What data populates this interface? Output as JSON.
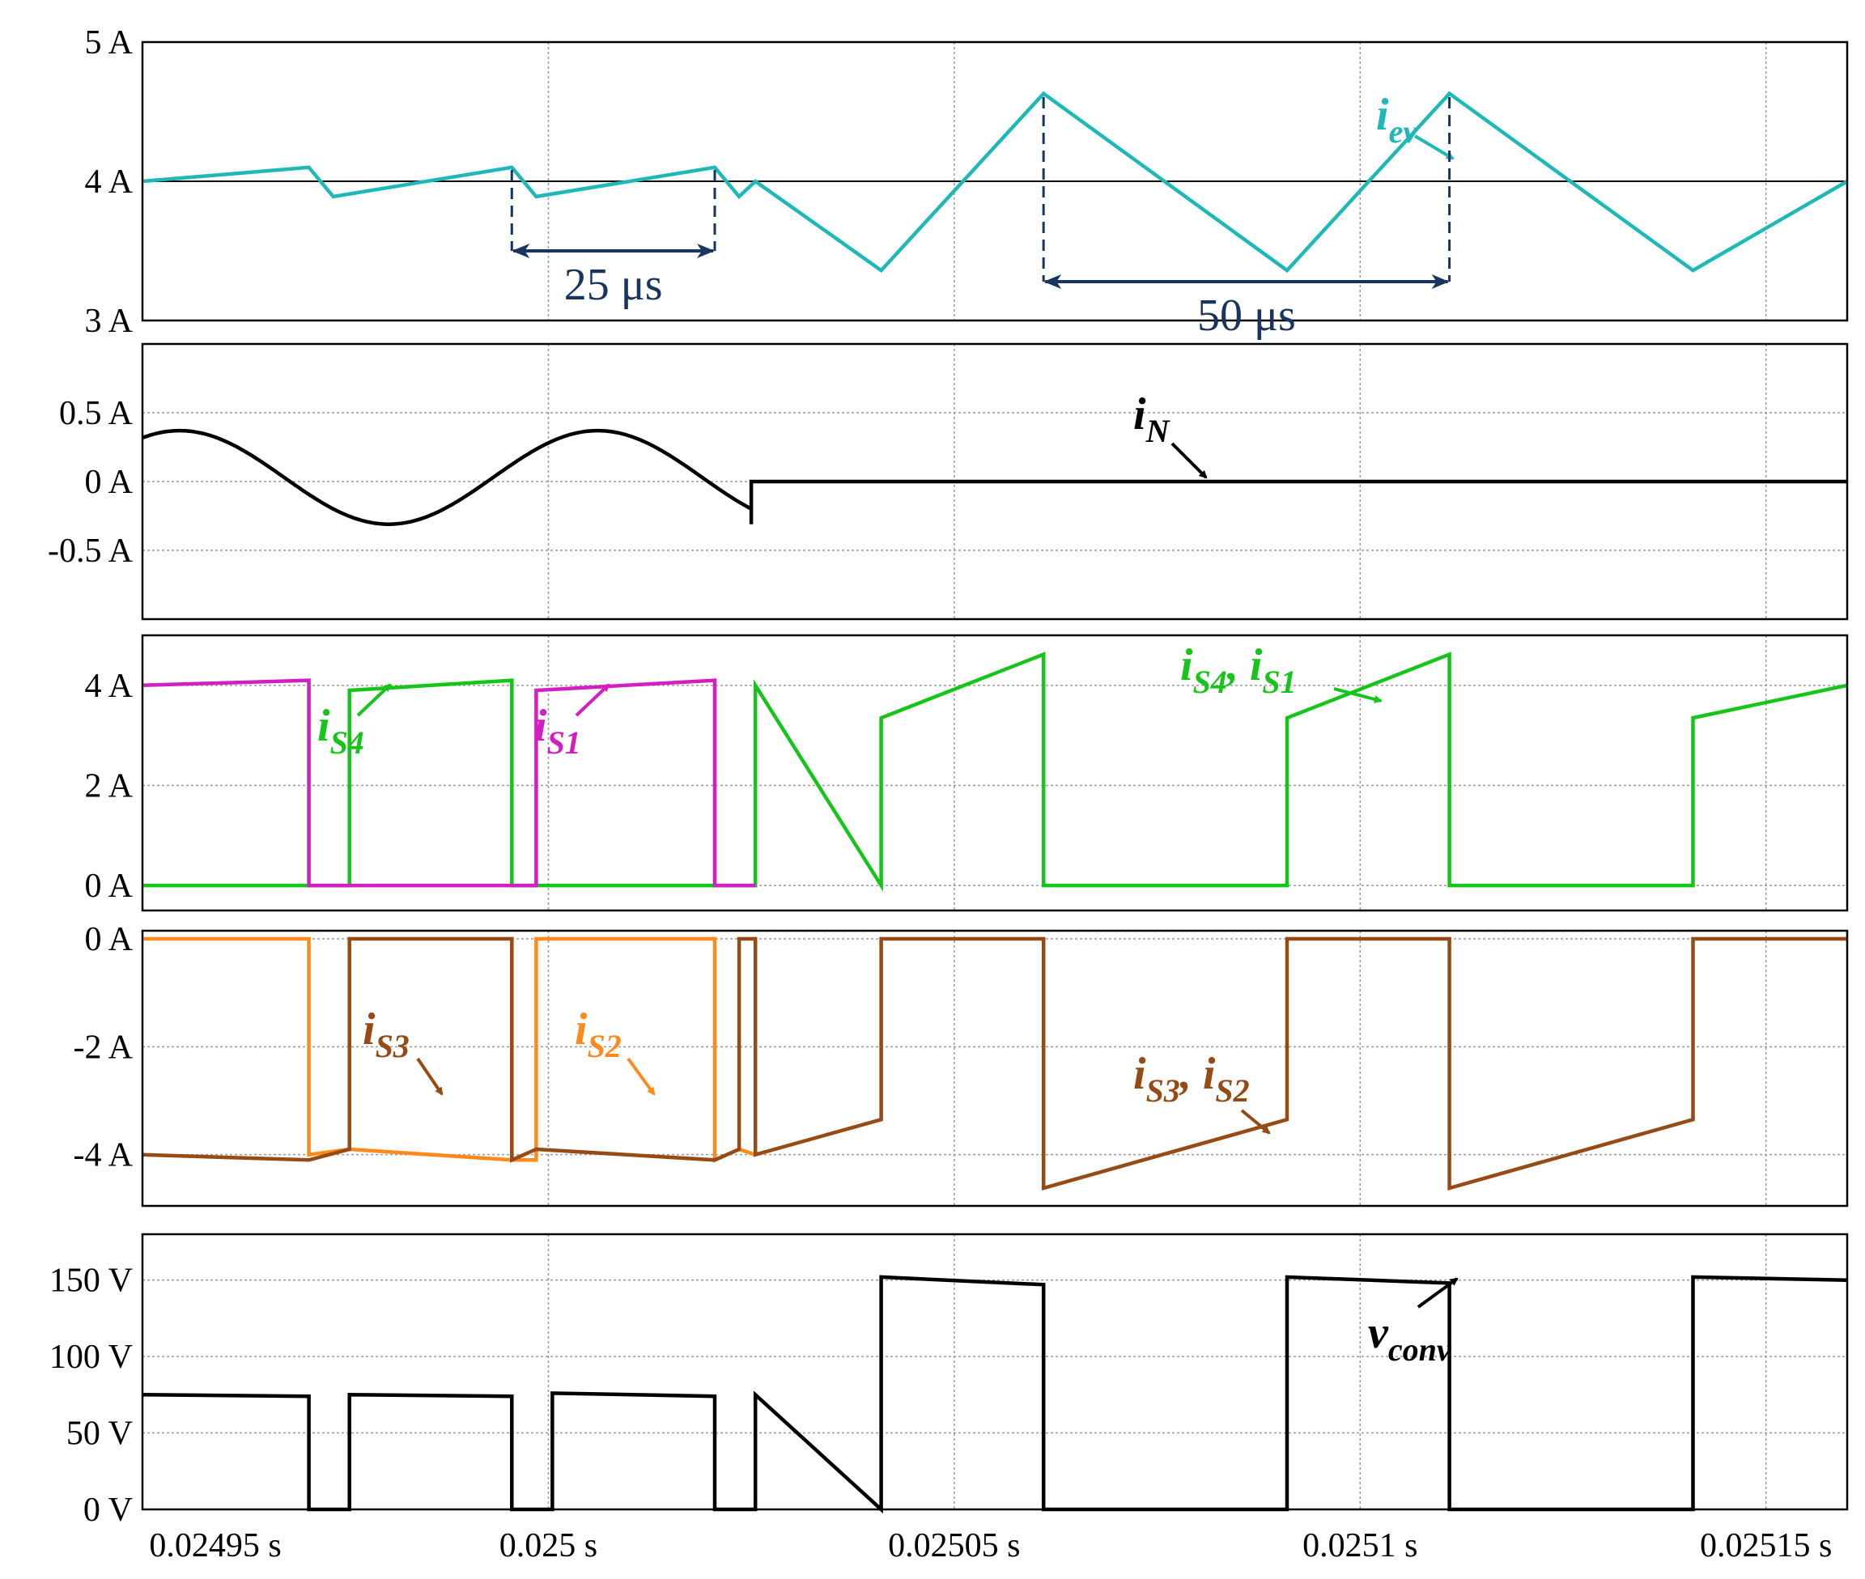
{
  "chart_data": [
    {
      "type": "line",
      "panel": "i_ev",
      "x_unit": "s",
      "ylim": [
        3,
        5
      ],
      "ytick_values": [
        3,
        4,
        5
      ],
      "yticks": [
        "3 A",
        "4 A",
        "5 A"
      ],
      "grid": true,
      "reference_line": 4,
      "series": [
        {
          "name": "iev",
          "color": "#1fb8b8",
          "x": [
            0.02495,
            0.0249705,
            0.0249735,
            0.0249955,
            0.0249985,
            0.0250205,
            0.0250235,
            0.0250255,
            0.025041,
            0.025061,
            0.025091,
            0.025111,
            0.025141,
            0.02516
          ],
          "y": [
            4.0,
            4.1,
            3.89,
            4.1,
            3.89,
            4.1,
            3.89,
            4.0,
            3.36,
            4.63,
            3.36,
            4.63,
            3.36,
            4.0
          ]
        }
      ],
      "labels": [
        {
          "base": "i",
          "sub": "ev"
        }
      ],
      "annotations": [
        {
          "text": "25 μs",
          "from": 0.0249955,
          "to": 0.0250205
        },
        {
          "text": "50 μs",
          "from": 0.025061,
          "to": 0.025111
        }
      ]
    },
    {
      "type": "line",
      "panel": "i_N",
      "x_unit": "s",
      "ylim": [
        -1,
        1
      ],
      "ytick_values": [
        0.5,
        0,
        -0.5
      ],
      "yticks": [
        "0.5 A",
        "0 A",
        "-0.5 A"
      ],
      "grid": true,
      "series": [
        {
          "name": "iN",
          "color": "#000000",
          "sine": {
            "start": 0.02495,
            "end": 0.025025,
            "offset": 0.03,
            "amplitude": 0.34,
            "period": 5.15e-05,
            "phase_deg": 58
          },
          "x": [
            0.025025,
            0.025025,
            0.02516
          ],
          "y": [
            -0.31,
            0.0,
            0.0
          ]
        }
      ],
      "labels": [
        {
          "base": "i",
          "sub": "N"
        }
      ]
    },
    {
      "type": "line",
      "panel": "i_S4_i_S1",
      "x_unit": "s",
      "ylim": [
        -0.5,
        5.0
      ],
      "ytick_values": [
        4,
        2,
        0
      ],
      "yticks": [
        "4 A",
        "2 A",
        "0 A"
      ],
      "grid": true,
      "series": [
        {
          "name": "iS4, iS1",
          "color": "#17c41a",
          "x": [
            0.02495,
            0.0249755,
            0.0249755,
            0.0249955,
            0.0249955,
            0.0250005,
            0.0250005,
            0.0250205,
            0.0250205,
            0.0250255,
            0.0250255,
            0.025041,
            0.025041,
            0.025061,
            0.025061,
            0.025091,
            0.025091,
            0.025111,
            0.025111,
            0.025141,
            0.025141,
            0.02516
          ],
          "y": [
            0,
            0,
            3.9,
            4.1,
            0,
            0,
            0,
            0,
            0,
            0,
            4.0,
            0,
            3.35,
            4.62,
            0,
            0,
            3.35,
            4.62,
            0,
            0,
            3.35,
            4.0
          ]
        },
        {
          "name": "iS1",
          "color": "#d11fc4",
          "x": [
            0.02495,
            0.0249705,
            0.0249705,
            0.0249755,
            0.0249955,
            0.0249985,
            0.0249985,
            0.0250205,
            0.0250205,
            0.0250235,
            0.0250235,
            0.0250255
          ],
          "y": [
            4.0,
            4.1,
            0,
            0,
            0,
            0,
            3.9,
            4.1,
            0,
            0,
            0,
            0
          ]
        }
      ],
      "labels": [
        {
          "base": "i",
          "sub": "S4"
        },
        {
          "base": "i",
          "sub": "S1"
        },
        {
          "base": "i",
          "sub": "S4",
          "sep": ", ",
          "base2": "i",
          "sub2": "S1"
        }
      ]
    },
    {
      "type": "line",
      "panel": "i_S3_i_S2",
      "x_unit": "s",
      "ylim": [
        -4.95,
        0.15
      ],
      "ytick_values": [
        0,
        -2,
        -4
      ],
      "yticks": [
        "0 A",
        "-2 A",
        "-4 A"
      ],
      "grid": true,
      "series": [
        {
          "name": "iS2",
          "color": "#ff8a1c",
          "x": [
            0.02495,
            0.0249705,
            0.0249705,
            0.0249755,
            0.0249955,
            0.0249985,
            0.0249985,
            0.0250205,
            0.0250205,
            0.0250235,
            0.0250235,
            0.0250255
          ],
          "y": [
            0,
            0,
            -4.0,
            -3.9,
            -4.1,
            -4.1,
            0,
            0,
            -4.1,
            -3.9,
            -3.9,
            -4.0
          ]
        },
        {
          "name": "iS3, iS2",
          "color": "#964b14",
          "x": [
            0.02495,
            0.0249705,
            0.0249755,
            0.0249755,
            0.0249955,
            0.0249955,
            0.0249985,
            0.0250205,
            0.0250235,
            0.0250235,
            0.0250255,
            0.0250255,
            0.025041,
            0.025041,
            0.025061,
            0.025061,
            0.025091,
            0.025091,
            0.025111,
            0.025111,
            0.025141,
            0.025141,
            0.02516
          ],
          "y": [
            -4.0,
            -4.1,
            -3.9,
            0,
            0,
            -4.1,
            -3.9,
            -4.1,
            -3.9,
            0,
            0,
            -4.0,
            -3.35,
            0,
            0,
            -4.62,
            -3.35,
            0,
            0,
            -4.62,
            -3.35,
            0,
            0
          ]
        }
      ],
      "labels": [
        {
          "base": "i",
          "sub": "S3"
        },
        {
          "base": "i",
          "sub": "S2"
        },
        {
          "base": "i",
          "sub": "S3",
          "sep": ", ",
          "base2": "i",
          "sub2": "S2"
        }
      ]
    },
    {
      "type": "line",
      "panel": "v_conv",
      "x_unit": "s",
      "ylim": [
        0,
        180
      ],
      "ytick_values": [
        150,
        100,
        50,
        0
      ],
      "yticks": [
        "150 V",
        "100 V",
        "50 V",
        "0 V"
      ],
      "grid": true,
      "x_ticks": [
        0.02495,
        0.025,
        0.02505,
        0.0251,
        0.02515
      ],
      "x_tick_labels": [
        "0.02495 s",
        "0.025 s",
        "0.02505 s",
        "0.0251 s",
        "0.02515 s"
      ],
      "series": [
        {
          "name": "vconv",
          "color": "#000000",
          "x": [
            0.02495,
            0.0249705,
            0.0249705,
            0.0249755,
            0.0249755,
            0.0249955,
            0.0249955,
            0.0250005,
            0.0250005,
            0.0250205,
            0.0250205,
            0.0250255,
            0.0250255,
            0.025041,
            0.025041,
            0.025061,
            0.025061,
            0.025091,
            0.025091,
            0.025111,
            0.025111,
            0.025141,
            0.025141,
            0.02516
          ],
          "y": [
            75,
            74,
            0,
            0,
            75,
            74,
            0,
            0,
            76,
            74,
            0,
            0,
            75,
            0,
            152,
            147,
            0,
            0,
            152,
            148,
            0,
            0,
            152,
            150
          ]
        }
      ],
      "labels": [
        {
          "base": "v",
          "sub": "conv"
        }
      ]
    }
  ]
}
